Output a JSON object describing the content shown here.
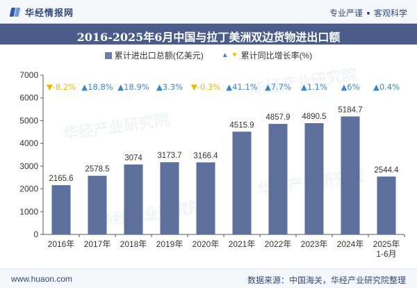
{
  "header": {
    "brand": "华经情报网",
    "tagline_left": "专业严谨",
    "tagline_right": "客观科学"
  },
  "watermark": {
    "text": "华经产业研究院"
  },
  "footer": {
    "url": "www.huaon.com",
    "source": "数据来源：中国海关，华经产业研究院整理"
  },
  "colors": {
    "bar": "#5d6f9b",
    "up": "#3a86c8",
    "down": "#f0b800",
    "label": "#333333"
  },
  "chart_data": {
    "type": "bar",
    "title": "2016-2025年6月中国与拉丁美洲双边货物进出口额",
    "categories": [
      "2016年",
      "2017年",
      "2018年",
      "2019年",
      "2020年",
      "2021年",
      "2022年",
      "2023年",
      "2024年",
      "2025年\n1-6月"
    ],
    "series": [
      {
        "name": "累计进出口总额(亿美元)",
        "values": [
          2165.6,
          2578.5,
          3074,
          3173.7,
          3166.4,
          4515.9,
          4857.9,
          4890.5,
          5184.7,
          2544.4
        ],
        "value_labels": [
          "2165.6",
          "2578.5",
          "3074",
          "3173.7",
          "3166.4",
          "4515.9",
          "4857.9",
          "4890.5",
          "5184.7",
          "2544.4"
        ]
      },
      {
        "name": "累计同比增长率(%)",
        "values": [
          -8.2,
          18.8,
          18.9,
          3.3,
          -0.3,
          41.1,
          7.7,
          1.1,
          6,
          0.4
        ],
        "value_labels": [
          "-8.2%",
          "18.8%",
          "18.9%",
          "3.3%",
          "-0.3%",
          "41.1%",
          "7.7%",
          "1.1%",
          "6%",
          "0.4%"
        ]
      }
    ],
    "ylim": [
      0,
      7000
    ],
    "yticks": [
      0,
      1000,
      2000,
      3000,
      4000,
      5000,
      6000,
      7000
    ],
    "ytick_labels": [
      "0",
      "1000",
      "2000",
      "3000",
      "4000",
      "5000",
      "6000",
      "7000"
    ],
    "xlabel": "",
    "ylabel": "",
    "legend_position": "top-center",
    "grid": false
  }
}
